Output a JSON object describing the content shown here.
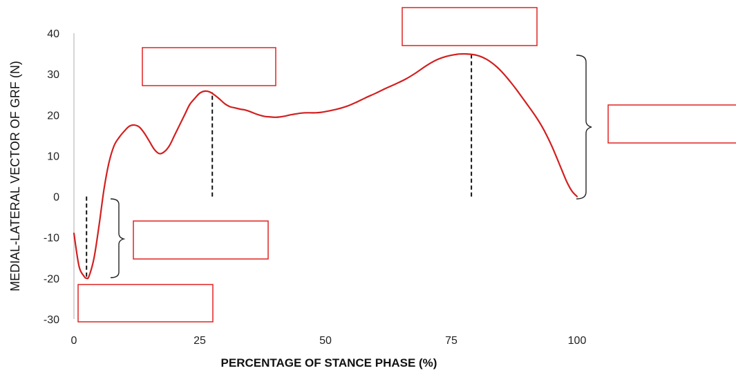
{
  "chart_data": {
    "type": "line",
    "title": "",
    "xlabel": "PERCENTAGE OF STANCE PHASE (%)",
    "ylabel": "MEDIAL-LATERAL VECTOR OF GRF (N)",
    "xlim": [
      0,
      100
    ],
    "ylim": [
      -30,
      40
    ],
    "x_ticks": [
      0,
      25,
      50,
      75,
      100
    ],
    "y_ticks": [
      40,
      30,
      20,
      10,
      0,
      -10,
      -20,
      -30
    ],
    "grid": false,
    "legend": "none",
    "series": [
      {
        "color": "#d21f1f",
        "x": [
          0,
          1,
          2,
          2.5,
          3,
          4,
          5,
          6,
          7,
          8,
          9,
          10,
          11,
          12,
          13,
          14,
          15,
          16,
          17,
          18,
          19,
          20,
          21,
          22,
          23,
          24,
          25,
          26,
          27,
          28,
          29,
          30,
          31,
          32,
          33,
          34,
          35,
          36,
          37,
          38,
          39,
          40,
          41,
          42,
          43,
          44,
          45,
          46,
          47,
          48,
          49,
          50,
          52,
          54,
          56,
          58,
          60,
          62,
          64,
          66,
          68,
          70,
          72,
          74,
          76,
          77,
          78,
          79,
          80,
          81,
          82,
          83,
          84,
          85,
          86,
          87,
          88,
          89,
          90,
          91,
          92,
          93,
          94,
          95,
          96,
          97,
          98,
          99,
          100
        ],
        "y": [
          -9,
          -17,
          -19.5,
          -20,
          -19.5,
          -15,
          -7,
          2,
          8.5,
          12.5,
          14.5,
          16,
          17.2,
          17.5,
          17,
          15.5,
          13.5,
          11.5,
          10.5,
          11,
          12.5,
          15,
          17.5,
          20,
          22.5,
          24,
          25.3,
          25.8,
          25.6,
          24.8,
          23.8,
          22.7,
          22.0,
          21.7,
          21.4,
          21.2,
          20.8,
          20.3,
          19.9,
          19.6,
          19.5,
          19.4,
          19.5,
          19.7,
          20.0,
          20.2,
          20.4,
          20.5,
          20.5,
          20.5,
          20.6,
          20.8,
          21.3,
          22.0,
          23.0,
          24.2,
          25.3,
          26.5,
          27.6,
          28.8,
          30.3,
          32.0,
          33.4,
          34.3,
          34.8,
          34.9,
          34.9,
          34.8,
          34.6,
          34.2,
          33.6,
          32.8,
          31.8,
          30.6,
          29.2,
          27.7,
          26.1,
          24.4,
          22.7,
          21.0,
          19.2,
          17.2,
          14.9,
          12.3,
          9.4,
          6.4,
          3.5,
          1.3,
          0
        ]
      }
    ],
    "annotations": {
      "dashed_markers": [
        {
          "x": 2.5,
          "y": -20
        },
        {
          "x": 27.5,
          "y": 25.5
        },
        {
          "x": 79,
          "y": 34.9
        }
      ],
      "empty_label_boxes": 5,
      "braces": 2
    },
    "colors": {
      "curve": "#d21f1f",
      "box_border": "#e02020",
      "axis": "#c8c8c8",
      "dashed": "#111111",
      "brace": "#222222"
    }
  }
}
